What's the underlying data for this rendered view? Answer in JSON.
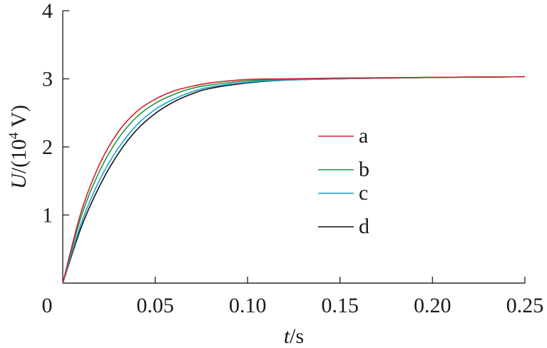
{
  "chart_data": {
    "type": "line",
    "title": "",
    "xlabel": {
      "var": "t",
      "unit": "/s"
    },
    "ylabel": {
      "var": "U",
      "unit_prefix": "/(10",
      "unit_exp": "4",
      "unit_suffix": " V)"
    },
    "xlim": [
      0,
      0.25
    ],
    "ylim": [
      0,
      4
    ],
    "xticks": [
      0.05,
      0.1,
      0.15,
      0.2,
      0.25
    ],
    "xtick_labels": [
      "0.05",
      "0.10",
      "0.15",
      "0.20",
      "0.25"
    ],
    "yticks": [
      1,
      2,
      3,
      4
    ],
    "ytick_labels": [
      "1",
      "2",
      "3",
      "4"
    ],
    "origin_label": "0",
    "grid": false,
    "legend_position": "center-right",
    "series": [
      {
        "name": "a",
        "color": "#d2232a",
        "x": [
          0,
          0.01,
          0.02,
          0.03,
          0.04,
          0.05,
          0.06,
          0.07,
          0.08,
          0.1,
          0.12,
          0.15,
          0.2,
          0.25
        ],
        "y": [
          0,
          1.05,
          1.75,
          2.22,
          2.52,
          2.7,
          2.82,
          2.89,
          2.94,
          2.99,
          3.0,
          3.01,
          3.02,
          3.03
        ]
      },
      {
        "name": "b",
        "color": "#1a9645",
        "x": [
          0,
          0.01,
          0.02,
          0.03,
          0.04,
          0.05,
          0.06,
          0.07,
          0.08,
          0.1,
          0.12,
          0.15,
          0.2,
          0.25
        ],
        "y": [
          0,
          0.98,
          1.65,
          2.12,
          2.44,
          2.64,
          2.77,
          2.86,
          2.91,
          2.97,
          2.99,
          3.01,
          3.02,
          3.03
        ]
      },
      {
        "name": "c",
        "color": "#1ea1d9",
        "x": [
          0,
          0.01,
          0.02,
          0.03,
          0.04,
          0.05,
          0.06,
          0.07,
          0.08,
          0.1,
          0.12,
          0.15,
          0.2,
          0.25
        ],
        "y": [
          0,
          0.88,
          1.52,
          1.98,
          2.32,
          2.55,
          2.7,
          2.81,
          2.88,
          2.95,
          2.98,
          3.0,
          3.02,
          3.03
        ]
      },
      {
        "name": "d",
        "color": "#111111",
        "x": [
          0,
          0.01,
          0.02,
          0.03,
          0.04,
          0.05,
          0.06,
          0.07,
          0.08,
          0.1,
          0.12,
          0.15,
          0.2,
          0.25
        ],
        "y": [
          0,
          0.82,
          1.43,
          1.9,
          2.25,
          2.49,
          2.66,
          2.78,
          2.86,
          2.94,
          2.98,
          3.0,
          3.02,
          3.03
        ]
      }
    ]
  }
}
